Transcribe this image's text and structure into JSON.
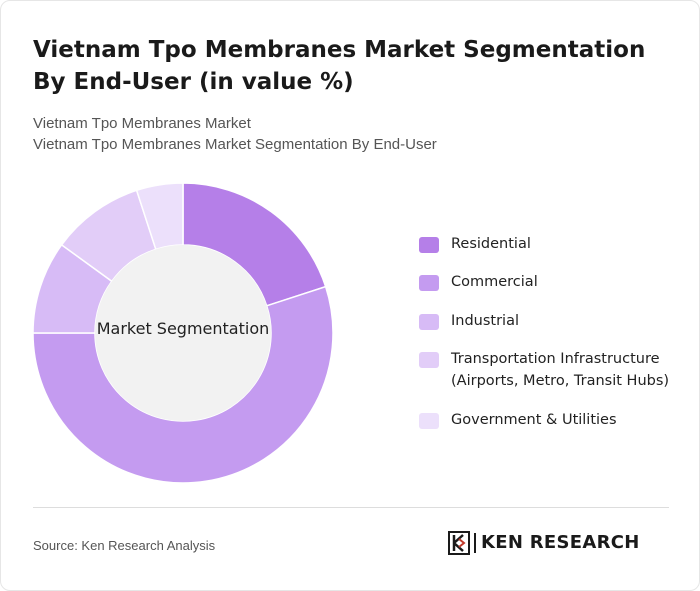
{
  "header": {
    "title": "Vietnam Tpo Membranes Market Segmentation By End-User (in value %)",
    "subtitle_1": "Vietnam Tpo Membranes Market",
    "subtitle_2": "Vietnam Tpo Membranes Market Segmentation By End-User"
  },
  "chart_data": {
    "type": "pie",
    "style": "donut",
    "center_label": "Market Segmentation",
    "categories": [
      "Residential",
      "Commercial",
      "Industrial",
      "Transportation Infrastructure (Airports, Metro, Transit Hubs)",
      "Government & Utilities"
    ],
    "values": [
      20,
      55,
      10,
      10,
      5
    ],
    "colors": [
      "#b57fe8",
      "#c49bf0",
      "#d7bbf6",
      "#e2cdf8",
      "#ece0fb"
    ],
    "legend_position": "right"
  },
  "legend": {
    "items": [
      "Residential",
      "Commercial",
      "Industrial",
      "Transportation Infrastructure (Airports, Metro, Transit Hubs)",
      "Government & Utilities"
    ]
  },
  "footer": {
    "source": "Source: Ken Research Analysis",
    "logo_text": "KEN RESEARCH",
    "logo_icon": "ken-research-logo-icon"
  }
}
